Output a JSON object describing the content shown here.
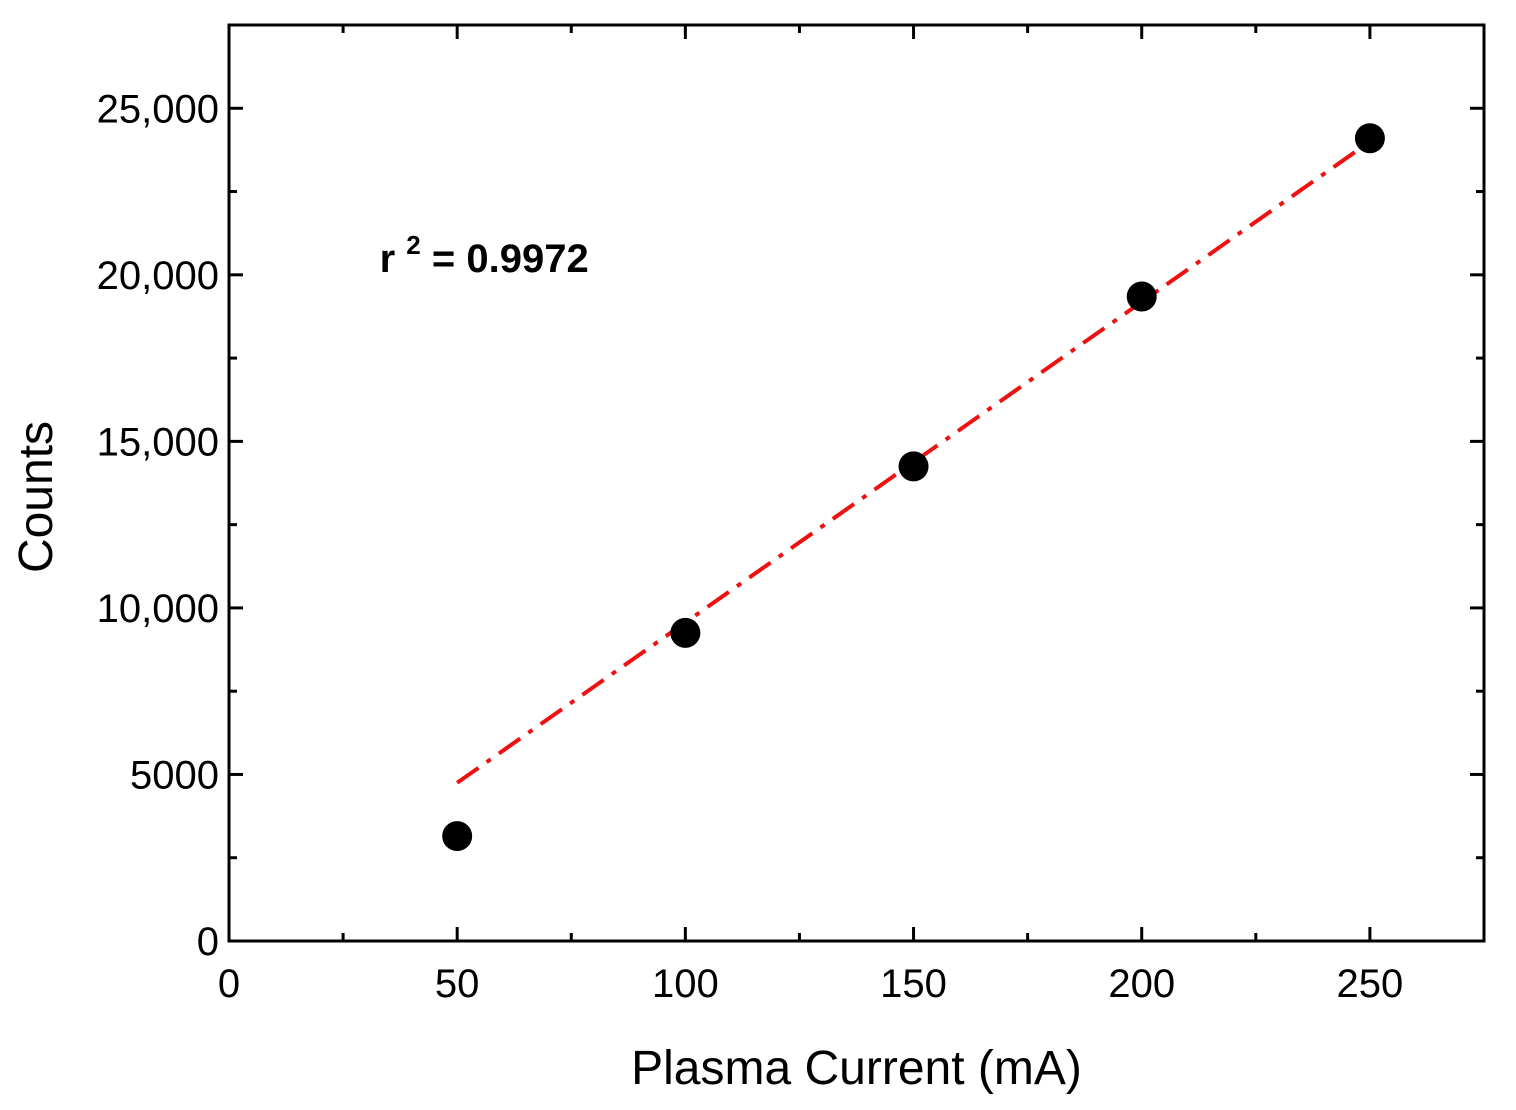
{
  "chart_data": {
    "type": "scatter",
    "title": "",
    "xlabel": "Plasma Current (mA)",
    "ylabel": "Counts",
    "xlim": [
      0,
      275
    ],
    "ylim": [
      0,
      27500
    ],
    "x_ticks": [
      0,
      50,
      100,
      150,
      200,
      250
    ],
    "x_tick_labels": [
      "0",
      "50",
      "100",
      "150",
      "200",
      "250"
    ],
    "x_minor_ticks": [
      25,
      75,
      125,
      175,
      225,
      275
    ],
    "y_ticks": [
      0,
      5000,
      10000,
      15000,
      20000,
      25000
    ],
    "y_tick_labels": [
      "0",
      "5000",
      "10,000",
      "15,000",
      "20,000",
      "25,000"
    ],
    "y_minor_ticks": [
      2500,
      7500,
      12500,
      17500,
      22500
    ],
    "grid": false,
    "series": [
      {
        "name": "Counts",
        "marker": "circle",
        "color": "#000000",
        "x": [
          50,
          100,
          150,
          200,
          250
        ],
        "y": [
          3150,
          9250,
          14250,
          19350,
          24100
        ]
      }
    ],
    "fit": {
      "name": "Linear fit",
      "style": "dash-dot",
      "color": "#ee1111",
      "x": [
        50,
        250
      ],
      "y": [
        4750,
        24000
      ]
    },
    "annotation": {
      "base": "r",
      "superscript": "2",
      "text": " = 0.9972",
      "x": 33,
      "y": 20500
    }
  }
}
